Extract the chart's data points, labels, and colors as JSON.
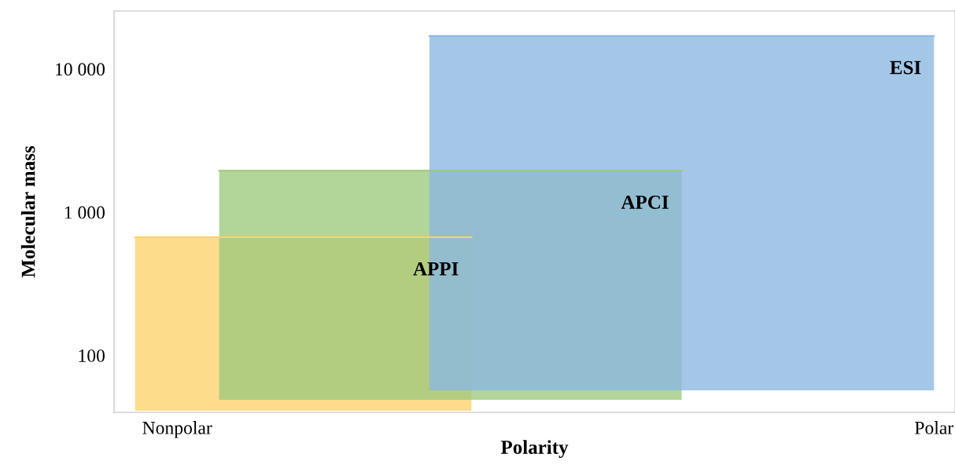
{
  "chart_data": {
    "type": "line",
    "xlabel": "Polarity",
    "ylabel": "Molecular mass",
    "log": "y",
    "categories": [
      null,
      "Nonpolar",
      null,
      null,
      null,
      null,
      null,
      null,
      null,
      null,
      null,
      null,
      null,
      null,
      null,
      null,
      null,
      null,
      null,
      "Polar"
    ],
    "ylim": [
      40,
      25400
    ],
    "yticks": [
      {
        "value": 100,
        "label": "100"
      },
      {
        "value": 1000,
        "label": "1 000"
      },
      {
        "value": 10000,
        "label": "10 000"
      }
    ],
    "series": [
      {
        "name": "APPI",
        "color": "#fdd26a",
        "values": [
          668,
          668,
          668,
          668,
          668,
          668,
          668,
          668,
          668,
          null,
          null,
          null,
          null,
          null,
          null,
          null,
          null,
          null,
          null,
          null
        ],
        "lower": [
          41,
          41,
          41,
          41,
          41,
          41,
          41,
          41,
          41,
          null,
          null,
          null,
          null,
          null,
          null,
          null,
          null,
          null,
          null,
          null
        ],
        "upper": [
          668,
          668,
          668,
          668,
          668,
          668,
          668,
          668,
          668,
          null,
          null,
          null,
          null,
          null,
          null,
          null,
          null,
          null,
          null,
          null
        ]
      },
      {
        "name": "APCI",
        "color": "#9cc97e",
        "values": [
          null,
          null,
          1950,
          1950,
          1950,
          1950,
          1950,
          1950,
          1950,
          1950,
          1950,
          1950,
          1950,
          1950,
          null,
          null,
          null,
          null,
          null,
          null
        ],
        "lower": [
          null,
          null,
          49,
          49,
          49,
          49,
          49,
          49,
          49,
          49,
          49,
          49,
          49,
          49,
          null,
          null,
          null,
          null,
          null,
          null
        ],
        "upper": [
          null,
          null,
          1950,
          1950,
          1950,
          1950,
          1950,
          1950,
          1950,
          1950,
          1950,
          1950,
          1950,
          1950,
          null,
          null,
          null,
          null,
          null,
          null
        ]
      },
      {
        "name": "ESI",
        "color": "#8bb7e2",
        "values": [
          null,
          null,
          null,
          null,
          null,
          null,
          null,
          17000,
          17000,
          17000,
          17000,
          17000,
          17000,
          17000,
          17000,
          17000,
          17000,
          17000,
          17000,
          17000
        ],
        "lower": [
          null,
          null,
          null,
          null,
          null,
          null,
          null,
          57,
          57,
          57,
          57,
          57,
          57,
          57,
          57,
          57,
          57,
          57,
          57,
          57
        ],
        "upper": [
          null,
          null,
          null,
          null,
          null,
          null,
          null,
          17000,
          17000,
          17000,
          17000,
          17000,
          17000,
          17000,
          17000,
          17000,
          17000,
          17000,
          17000,
          17000
        ]
      }
    ],
    "grid": false
  }
}
